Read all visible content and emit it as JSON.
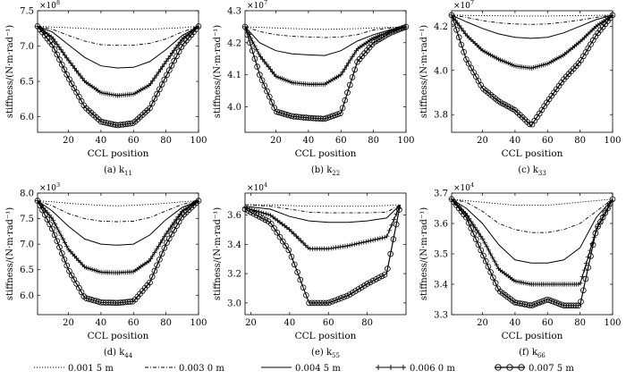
{
  "chart_data": [
    {
      "type": "line",
      "caption": "(a) k11",
      "caption_main": "(a) k",
      "caption_sub": "11",
      "exponent_base": "×10",
      "exponent_power": "8",
      "xlabel": "CCL position",
      "ylabel": "stiffness/(N·m·rad⁻¹)",
      "xlim": [
        1,
        100
      ],
      "ylim": [
        5.78,
        7.5
      ],
      "xticks": [
        20,
        40,
        60,
        80,
        100
      ],
      "xtick_labels": [
        "20",
        "40",
        "60",
        "80",
        "100"
      ],
      "yticks": [
        6.0,
        6.5,
        7.0,
        7.5
      ],
      "ytick_labels": [
        "6.0",
        "6.5",
        "7.0",
        "7.5"
      ],
      "series": [
        {
          "name": "0.001 5 m",
          "x": [
            1,
            10,
            20,
            30,
            40,
            50,
            60,
            70,
            80,
            90,
            100
          ],
          "values": [
            7.28,
            7.27,
            7.26,
            7.25,
            7.24,
            7.24,
            7.24,
            7.24,
            7.25,
            7.26,
            7.28
          ]
        },
        {
          "name": "0.003 0 m",
          "x": [
            1,
            10,
            20,
            30,
            40,
            50,
            60,
            70,
            80,
            90,
            100
          ],
          "values": [
            7.28,
            7.24,
            7.15,
            7.07,
            7.02,
            7.01,
            7.01,
            7.04,
            7.1,
            7.2,
            7.28
          ]
        },
        {
          "name": "0.004 5 m",
          "x": [
            1,
            10,
            20,
            30,
            40,
            50,
            60,
            70,
            80,
            90,
            100
          ],
          "values": [
            7.28,
            7.2,
            7.02,
            6.84,
            6.72,
            6.69,
            6.7,
            6.78,
            6.95,
            7.15,
            7.28
          ]
        },
        {
          "name": "0.006 0 m",
          "x": [
            1,
            10,
            20,
            30,
            40,
            50,
            60,
            70,
            80,
            90,
            100
          ],
          "values": [
            7.28,
            7.12,
            6.8,
            6.5,
            6.34,
            6.3,
            6.32,
            6.45,
            6.78,
            7.1,
            7.28
          ]
        },
        {
          "name": "0.007 5 m",
          "x": [
            1,
            10,
            20,
            30,
            40,
            50,
            60,
            70,
            80,
            90,
            100
          ],
          "values": [
            7.28,
            7.02,
            6.55,
            6.14,
            5.93,
            5.88,
            5.91,
            6.12,
            6.57,
            7.01,
            7.28
          ]
        }
      ]
    },
    {
      "type": "line",
      "caption": "(b) k22",
      "caption_main": "(b) k",
      "caption_sub": "22",
      "exponent_base": "×10",
      "exponent_power": "7",
      "xlabel": "CCL position",
      "ylabel": "stiffness/(N·m·rad⁻¹)",
      "xlim": [
        1,
        100
      ],
      "ylim": [
        3.92,
        4.3
      ],
      "xticks": [
        20,
        40,
        60,
        80,
        100
      ],
      "xtick_labels": [
        "20",
        "40",
        "60",
        "80",
        "100"
      ],
      "yticks": [
        4.0,
        4.1,
        4.2,
        4.3
      ],
      "ytick_labels": [
        "4.0",
        "4.1",
        "4.2",
        "4.3"
      ],
      "series": [
        {
          "name": "0.001 5 m",
          "x": [
            1,
            10,
            20,
            30,
            40,
            50,
            60,
            70,
            80,
            90,
            100
          ],
          "values": [
            4.25,
            4.248,
            4.246,
            4.244,
            4.243,
            4.242,
            4.243,
            4.244,
            4.246,
            4.248,
            4.25
          ]
        },
        {
          "name": "0.003 0 m",
          "x": [
            1,
            10,
            20,
            30,
            40,
            50,
            60,
            70,
            80,
            90,
            100
          ],
          "values": [
            4.25,
            4.235,
            4.225,
            4.22,
            4.218,
            4.216,
            4.218,
            4.225,
            4.24,
            4.246,
            4.25
          ]
        },
        {
          "name": "0.004 5 m",
          "x": [
            1,
            10,
            20,
            30,
            40,
            50,
            60,
            70,
            80,
            90,
            100
          ],
          "values": [
            4.25,
            4.2,
            4.175,
            4.165,
            4.162,
            4.16,
            4.175,
            4.205,
            4.225,
            4.24,
            4.25
          ]
        },
        {
          "name": "0.006 0 m",
          "x": [
            1,
            10,
            20,
            30,
            40,
            50,
            60,
            70,
            80,
            90,
            100
          ],
          "values": [
            4.25,
            4.16,
            4.095,
            4.075,
            4.07,
            4.07,
            4.1,
            4.18,
            4.215,
            4.235,
            4.25
          ]
        },
        {
          "name": "0.007 5 m",
          "x": [
            1,
            10,
            20,
            30,
            40,
            50,
            60,
            70,
            80,
            90,
            100
          ],
          "values": [
            4.25,
            4.1,
            3.985,
            3.97,
            3.965,
            3.962,
            3.98,
            4.14,
            4.2,
            4.23,
            4.25
          ]
        }
      ]
    },
    {
      "type": "line",
      "caption": "(c) k33",
      "caption_main": "(c) k",
      "caption_sub": "33",
      "exponent_base": "×10",
      "exponent_power": "7",
      "xlabel": "CCL position",
      "ylabel": "stiffness/(N·m·rad⁻¹)",
      "xlim": [
        1,
        100
      ],
      "ylim": [
        3.72,
        4.27
      ],
      "xticks": [
        20,
        40,
        60,
        80,
        100
      ],
      "xtick_labels": [
        "20",
        "40",
        "60",
        "80",
        "100"
      ],
      "yticks": [
        3.8,
        4.0,
        4.2
      ],
      "ytick_labels": [
        "3.8",
        "4.0",
        "4.2"
      ],
      "series": [
        {
          "name": "0.001 5 m",
          "x": [
            1,
            10,
            20,
            30,
            40,
            50,
            60,
            70,
            80,
            90,
            100
          ],
          "values": [
            4.25,
            4.249,
            4.248,
            4.247,
            4.246,
            4.246,
            4.246,
            4.247,
            4.248,
            4.249,
            4.25
          ]
        },
        {
          "name": "0.003 0 m",
          "x": [
            1,
            10,
            20,
            30,
            40,
            50,
            60,
            70,
            80,
            90,
            100
          ],
          "values": [
            4.25,
            4.24,
            4.225,
            4.215,
            4.21,
            4.208,
            4.21,
            4.218,
            4.228,
            4.24,
            4.25
          ]
        },
        {
          "name": "0.004 5 m",
          "x": [
            1,
            10,
            20,
            30,
            40,
            50,
            60,
            70,
            80,
            90,
            100
          ],
          "values": [
            4.25,
            4.22,
            4.19,
            4.165,
            4.15,
            4.145,
            4.15,
            4.17,
            4.2,
            4.23,
            4.25
          ]
        },
        {
          "name": "0.006 0 m",
          "x": [
            1,
            10,
            20,
            30,
            40,
            50,
            60,
            70,
            80,
            90,
            100
          ],
          "values": [
            4.25,
            4.16,
            4.09,
            4.05,
            4.02,
            4.01,
            4.03,
            4.07,
            4.13,
            4.2,
            4.25
          ]
        },
        {
          "name": "0.007 5 m",
          "x": [
            1,
            10,
            20,
            30,
            40,
            50,
            60,
            70,
            80,
            90,
            100
          ],
          "values": [
            4.25,
            4.05,
            3.92,
            3.86,
            3.82,
            3.75,
            3.86,
            3.96,
            4.04,
            4.16,
            4.25
          ]
        }
      ]
    },
    {
      "type": "line",
      "caption": "(d) k44",
      "caption_main": "(d) k",
      "caption_sub": "44",
      "exponent_base": "×10",
      "exponent_power": "3",
      "xlabel": "CCL position",
      "ylabel": "stiffness/(N·m·rad⁻¹)",
      "xlim": [
        1,
        100
      ],
      "ylim": [
        5.62,
        8.0
      ],
      "xticks": [
        20,
        40,
        60,
        80,
        100
      ],
      "xtick_labels": [
        "20",
        "40",
        "60",
        "80",
        "100"
      ],
      "yticks": [
        6.0,
        6.5,
        7.0,
        7.5,
        8.0
      ],
      "ytick_labels": [
        "6.0",
        "6.5",
        "7.0",
        "7.5",
        "8.0"
      ],
      "series": [
        {
          "name": "0.001 5 m",
          "x": [
            1,
            10,
            20,
            30,
            40,
            50,
            60,
            70,
            80,
            90,
            100
          ],
          "values": [
            7.85,
            7.83,
            7.8,
            7.78,
            7.76,
            7.75,
            7.76,
            7.78,
            7.8,
            7.83,
            7.85
          ]
        },
        {
          "name": "0.003 0 m",
          "x": [
            1,
            10,
            20,
            30,
            40,
            50,
            60,
            70,
            80,
            90,
            100
          ],
          "values": [
            7.85,
            7.75,
            7.6,
            7.5,
            7.45,
            7.44,
            7.45,
            7.52,
            7.65,
            7.78,
            7.85
          ]
        },
        {
          "name": "0.004 5 m",
          "x": [
            1,
            10,
            20,
            30,
            40,
            50,
            60,
            70,
            80,
            90,
            100
          ],
          "values": [
            7.85,
            7.65,
            7.35,
            7.1,
            7.0,
            6.98,
            7.0,
            7.18,
            7.48,
            7.72,
            7.85
          ]
        },
        {
          "name": "0.006 0 m",
          "x": [
            1,
            10,
            20,
            30,
            40,
            50,
            60,
            70,
            80,
            90,
            100
          ],
          "values": [
            7.85,
            7.5,
            6.9,
            6.55,
            6.45,
            6.44,
            6.46,
            6.68,
            7.2,
            7.65,
            7.85
          ]
        },
        {
          "name": "0.007 5 m",
          "x": [
            1,
            10,
            20,
            30,
            40,
            50,
            60,
            70,
            80,
            90,
            100
          ],
          "values": [
            7.85,
            7.3,
            6.5,
            5.95,
            5.86,
            5.85,
            5.88,
            6.25,
            7.0,
            7.55,
            7.85
          ]
        }
      ]
    },
    {
      "type": "line",
      "caption": "(e) k55",
      "caption_main": "(e) k",
      "caption_sub": "55",
      "exponent_base": "×10",
      "exponent_power": "4",
      "xlabel": "CCL position",
      "ylabel": "stiffness/(N·m·rad⁻¹)",
      "xlim": [
        17,
        100
      ],
      "ylim": [
        2.92,
        3.75
      ],
      "xticks": [
        20,
        40,
        60,
        80
      ],
      "xtick_labels": [
        "20",
        "40",
        "60",
        "80"
      ],
      "yticks": [
        3.0,
        3.2,
        3.4,
        3.6
      ],
      "ytick_labels": [
        "3.0",
        "3.2",
        "3.4",
        "3.6"
      ],
      "series": [
        {
          "name": "0.001 5 m",
          "x": [
            17,
            30,
            40,
            50,
            60,
            70,
            80,
            90,
            97
          ],
          "values": [
            3.67,
            3.67,
            3.665,
            3.66,
            3.66,
            3.66,
            3.66,
            3.665,
            3.67
          ]
        },
        {
          "name": "0.003 0 m",
          "x": [
            17,
            30,
            40,
            50,
            60,
            70,
            80,
            90,
            97
          ],
          "values": [
            3.67,
            3.66,
            3.64,
            3.62,
            3.615,
            3.615,
            3.615,
            3.62,
            3.67
          ]
        },
        {
          "name": "0.004 5 m",
          "x": [
            17,
            30,
            40,
            50,
            60,
            70,
            80,
            90,
            97
          ],
          "values": [
            3.66,
            3.64,
            3.59,
            3.56,
            3.55,
            3.55,
            3.56,
            3.58,
            3.67
          ]
        },
        {
          "name": "0.006 0 m",
          "x": [
            17,
            30,
            40,
            50,
            60,
            70,
            80,
            90,
            97
          ],
          "values": [
            3.65,
            3.6,
            3.5,
            3.37,
            3.37,
            3.39,
            3.42,
            3.45,
            3.67
          ]
        },
        {
          "name": "0.007 5 m",
          "x": [
            17,
            30,
            40,
            50,
            60,
            70,
            80,
            90,
            97
          ],
          "values": [
            3.64,
            3.55,
            3.35,
            3.0,
            3.0,
            3.05,
            3.13,
            3.2,
            3.67
          ]
        }
      ]
    },
    {
      "type": "line",
      "caption": "(f) k66",
      "caption_main": "(f) k",
      "caption_sub": "66",
      "exponent_base": "×10",
      "exponent_power": "4",
      "xlabel": "CCL position",
      "ylabel": "stiffness/(N·m·rad⁻¹)",
      "xlim": [
        1,
        100
      ],
      "ylim": [
        3.3,
        3.7
      ],
      "xticks": [
        20,
        40,
        60,
        80,
        100
      ],
      "xtick_labels": [
        "20",
        "40",
        "60",
        "80",
        "100"
      ],
      "yticks": [
        3.3,
        3.4,
        3.5,
        3.6,
        3.7
      ],
      "ytick_labels": [
        "3.3",
        "3.4",
        "3.5",
        "3.6",
        "3.7"
      ],
      "series": [
        {
          "name": "0.001 5 m",
          "x": [
            1,
            10,
            20,
            30,
            40,
            50,
            60,
            70,
            80,
            90,
            100
          ],
          "values": [
            3.68,
            3.675,
            3.67,
            3.665,
            3.66,
            3.66,
            3.66,
            3.665,
            3.67,
            3.675,
            3.68
          ]
        },
        {
          "name": "0.003 0 m",
          "x": [
            1,
            10,
            20,
            30,
            40,
            50,
            60,
            70,
            80,
            90,
            100
          ],
          "values": [
            3.68,
            3.67,
            3.64,
            3.6,
            3.58,
            3.57,
            3.57,
            3.58,
            3.6,
            3.64,
            3.68
          ]
        },
        {
          "name": "0.004 5 m",
          "x": [
            1,
            10,
            20,
            30,
            40,
            50,
            60,
            70,
            80,
            90,
            100
          ],
          "values": [
            3.68,
            3.65,
            3.6,
            3.53,
            3.48,
            3.47,
            3.47,
            3.48,
            3.52,
            3.62,
            3.68
          ]
        },
        {
          "name": "0.006 0 m",
          "x": [
            1,
            10,
            20,
            30,
            40,
            50,
            60,
            70,
            80,
            90,
            100
          ],
          "values": [
            3.68,
            3.63,
            3.55,
            3.45,
            3.41,
            3.4,
            3.4,
            3.4,
            3.4,
            3.58,
            3.68
          ]
        },
        {
          "name": "0.007 5 m",
          "x": [
            1,
            10,
            20,
            30,
            40,
            50,
            60,
            70,
            80,
            90,
            100
          ],
          "values": [
            3.68,
            3.62,
            3.5,
            3.38,
            3.34,
            3.33,
            3.35,
            3.33,
            3.33,
            3.58,
            3.68
          ]
        }
      ]
    }
  ],
  "legend": {
    "placement": "bottom",
    "items": [
      {
        "label": "0.001 5 m",
        "style": "dotted"
      },
      {
        "label": "0.003 0 m",
        "style": "dashdot"
      },
      {
        "label": "0.004 5 m",
        "style": "solid"
      },
      {
        "label": "0.006 0 m",
        "style": "plus"
      },
      {
        "label": "0.007 5 m",
        "style": "circle"
      }
    ]
  }
}
